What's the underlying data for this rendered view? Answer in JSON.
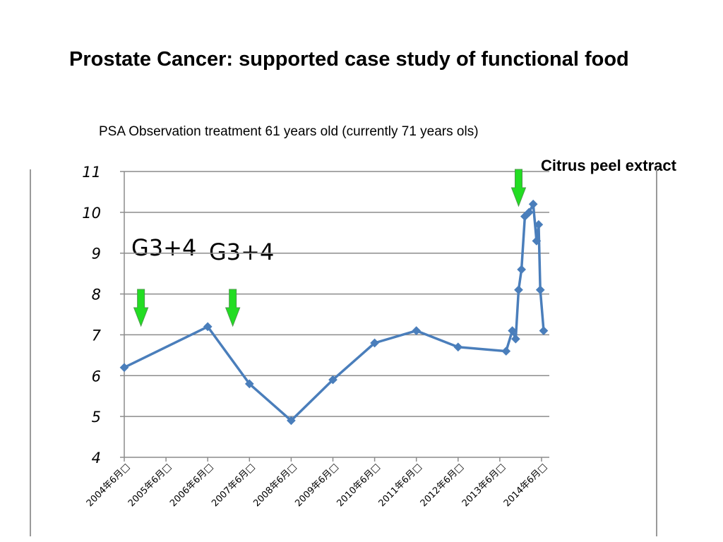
{
  "title": "Prostate Cancer:  supported case study of functional food",
  "subtitle": "PSA Observation treatment  61 years old (currently 71 years ols)",
  "annotations": {
    "citrus_label": "Citrus peel extract",
    "grade_label_1": "G3+4",
    "grade_label_2": "G3+4",
    "arrow_color": "#22dd22"
  },
  "colors": {
    "line": "#4a7ebb",
    "grid": "#8c8c8c"
  },
  "chart_data": {
    "type": "line",
    "title": "",
    "xlabel": "",
    "ylabel": "",
    "ylim": [
      4,
      11
    ],
    "grid": true,
    "legend": "none",
    "yticks": [
      4,
      5,
      6,
      7,
      8,
      9,
      10,
      11
    ],
    "xticks": [
      "2004年6月□",
      "2005年6月□",
      "2006年6月□",
      "2007年6月□",
      "2008年6月□",
      "2009年6月□",
      "2010年6月□",
      "2011年6月□",
      "2012年6月□",
      "2013年6月□",
      "2014年6月□"
    ],
    "x_axis_type": "years",
    "series": [
      {
        "x": [
          2004.0,
          2006.0,
          2007.0,
          2008.0,
          2009.0,
          2010.0,
          2011.0,
          2012.0,
          2013.15,
          2013.3,
          2013.38,
          2013.45,
          2013.52,
          2013.6,
          2013.7,
          2013.8,
          2013.88,
          2013.93,
          2013.97,
          2014.05
        ],
        "values": [
          6.2,
          7.2,
          5.8,
          4.9,
          5.9,
          6.8,
          7.1,
          6.7,
          6.6,
          7.1,
          6.9,
          8.1,
          8.6,
          9.9,
          10.0,
          10.2,
          9.3,
          9.7,
          8.1,
          7.1
        ]
      }
    ],
    "arrows_at": [
      2004.4,
      2006.6,
      2013.45
    ]
  }
}
